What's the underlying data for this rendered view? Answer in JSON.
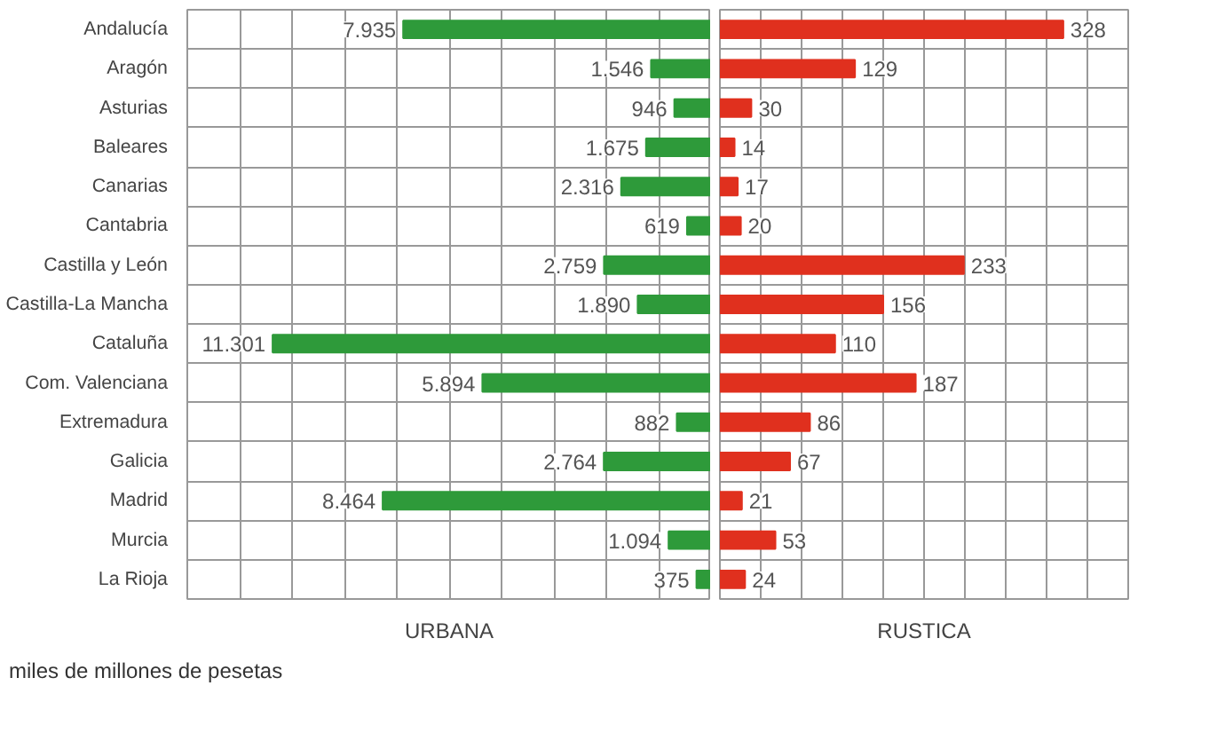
{
  "chart_data": [
    {
      "type": "bar",
      "orientation": "horizontal",
      "xlabel": "URBANA",
      "categories": [
        "Andalucía",
        "Aragón",
        "Asturias",
        "Baleares",
        "Canarias",
        "Cantabria",
        "Castilla y León",
        "Castilla-La Mancha",
        "Cataluña",
        "Com. Valenciana",
        "Extremadura",
        "Galicia",
        "Madrid",
        "Murcia",
        "La Rioja"
      ],
      "values": [
        7935,
        1546,
        946,
        1675,
        2316,
        619,
        2759,
        1890,
        11301,
        5894,
        882,
        2764,
        8464,
        1094,
        375
      ],
      "value_labels": [
        "7.935",
        "1.546",
        "946",
        "1.675",
        "2.316",
        "619",
        "2.759",
        "1.890",
        "11.301",
        "5.894",
        "882",
        "2.764",
        "8.464",
        "1.094",
        "375"
      ],
      "color": "#2e9a3a",
      "xlim": [
        13500,
        0
      ],
      "grid": true,
      "tick_labels": "y",
      "annotations": [
        "miles de millones de pesetas"
      ]
    },
    {
      "type": "bar",
      "orientation": "horizontal",
      "xlabel": "RUSTICA",
      "categories": [
        null,
        null,
        null,
        null,
        null,
        null,
        null,
        null,
        null,
        null,
        null,
        null,
        null,
        null,
        null
      ],
      "values": [
        328,
        129,
        30,
        14,
        17,
        20,
        233,
        156,
        110,
        187,
        86,
        67,
        21,
        53,
        24
      ],
      "data_labels": true,
      "color": "#e0301e",
      "xlim": [
        0,
        390
      ],
      "grid": true,
      "tick_labels": false
    }
  ]
}
